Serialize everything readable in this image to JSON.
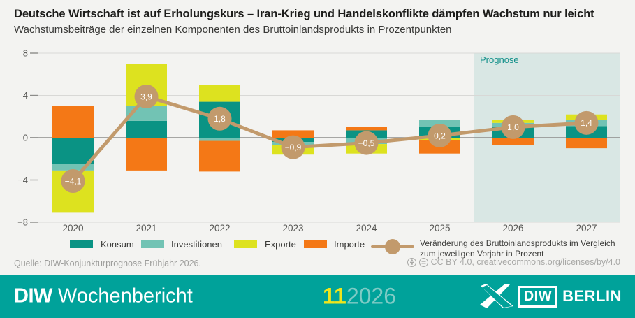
{
  "title": "Deutsche Wirtschaft ist auf Erholungskurs – Iran-Krieg und Handelskonflikte dämpfen Wachstum nur leicht",
  "subtitle": "Wachstumsbeiträge der einzelnen Komponenten des Bruttoinlandsprodukts in Prozentpunkten",
  "chart_data": {
    "type": "bar",
    "stacked": true,
    "categories": [
      "2020",
      "2021",
      "2022",
      "2023",
      "2024",
      "2025",
      "2026",
      "2027"
    ],
    "series": [
      {
        "name": "Konsum",
        "color": "#0a9384",
        "values": [
          -2.5,
          1.6,
          3.4,
          -0.4,
          0.7,
          1.0,
          1.0,
          1.1
        ]
      },
      {
        "name": "Investitionen",
        "color": "#72c3b4",
        "values": [
          -0.6,
          1.4,
          -0.3,
          -0.3,
          -0.6,
          0.7,
          0.4,
          0.6
        ]
      },
      {
        "name": "Exporte",
        "color": "#dde21f",
        "values": [
          -4.0,
          4.0,
          1.6,
          -0.9,
          -0.9,
          -0.2,
          0.3,
          0.5
        ]
      },
      {
        "name": "Importe",
        "color": "#f47816",
        "values": [
          3.0,
          -3.1,
          -2.9,
          0.7,
          0.3,
          -1.3,
          -0.7,
          -1.0
        ]
      }
    ],
    "line_series": {
      "name": "Veränderung des Bruttoinlandsprodukts im Vergleich zum jeweiligen Vorjahr in Prozent",
      "color": "#c29a6c",
      "values": [
        -4.1,
        3.9,
        1.8,
        -0.9,
        -0.5,
        0.2,
        1.0,
        1.4
      ],
      "labels": [
        "−4,1",
        "3,9",
        "1,8",
        "−0,9",
        "−0,5",
        "0,2",
        "1,0",
        "1,4"
      ]
    },
    "ylim": [
      -8,
      8
    ],
    "yticks": [
      8,
      4,
      0,
      -4,
      -8
    ],
    "ytick_labels": [
      "8",
      "4",
      "0",
      "−4",
      "−8"
    ],
    "grid": true,
    "legend_position": "bottom",
    "prognose": {
      "label": "Prognose",
      "from_category": "2026",
      "bg": "#d9e7e4",
      "text_color": "#0f8f88"
    }
  },
  "legend": {
    "note_line1": "Veränderung des Bruttoinlandsprodukts im Vergleich",
    "note_line2": "zum jeweiligen Vorjahr in Prozent"
  },
  "colors": {
    "background": "#f3f3f1",
    "gridline": "#d8d8d6",
    "zero_line": "#8c8c8a",
    "axis_label": "#565653",
    "footer_bg": "#00a29a",
    "footer_issue": "#efe51c",
    "footer_year": "#7fcbc5"
  },
  "source": "Quelle: DIW-Konjunkturprognose Frühjahr 2026.",
  "license": "CC BY 4.0, creativecommons.org/licenses/by/4.0",
  "footer": {
    "brand_bold": "DIW",
    "brand_rest": " Wochenbericht",
    "issue": "11",
    "year": "2026",
    "logo_diw": "DIW",
    "logo_berlin": "BERLIN"
  }
}
